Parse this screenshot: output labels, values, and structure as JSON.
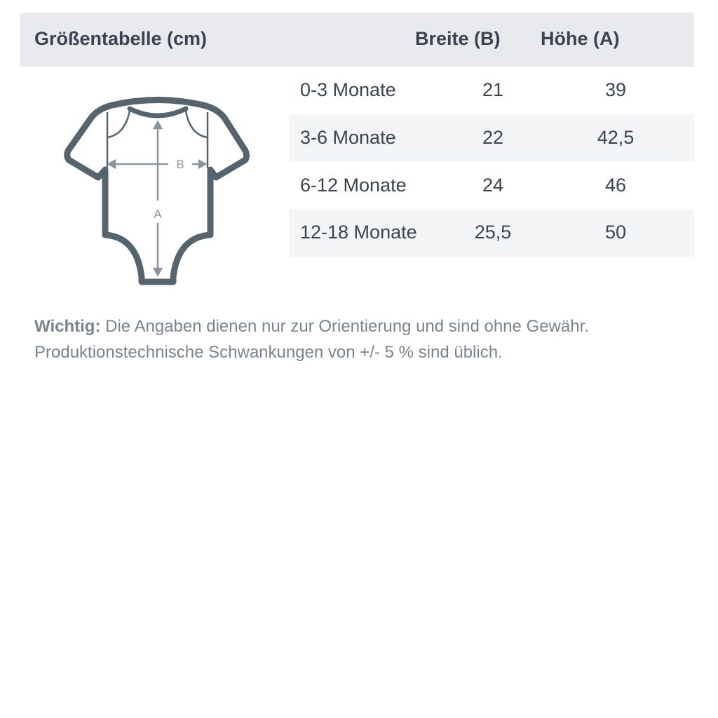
{
  "header": {
    "title": "Größentabelle (cm)",
    "col_width": "Breite (B)",
    "col_height": "Höhe (A)"
  },
  "rows": [
    {
      "size": "0-3 Monate",
      "width": "21",
      "height": "39"
    },
    {
      "size": "3-6 Monate",
      "width": "22",
      "height": "42,5"
    },
    {
      "size": "6-12 Monate",
      "width": "24",
      "height": "46"
    },
    {
      "size": "12-18 Monate",
      "width": "25,5",
      "height": "50"
    }
  ],
  "diagram": {
    "label_b": "B",
    "label_a": "A",
    "icon": "baby-bodysuit-icon"
  },
  "note": {
    "label": "Wichtig:",
    "line1": "Die Angaben dienen nur zur Orientierung und sind ohne Gewähr.",
    "line2": "Produktionstechnische Schwankungen von +/- 5 % sind üblich."
  },
  "colors": {
    "header_bg": "#e9eaee",
    "stripe_bg": "#f4f5f7",
    "text": "#3b4351",
    "icon_stroke": "#56656d",
    "measure": "#8a949c"
  }
}
